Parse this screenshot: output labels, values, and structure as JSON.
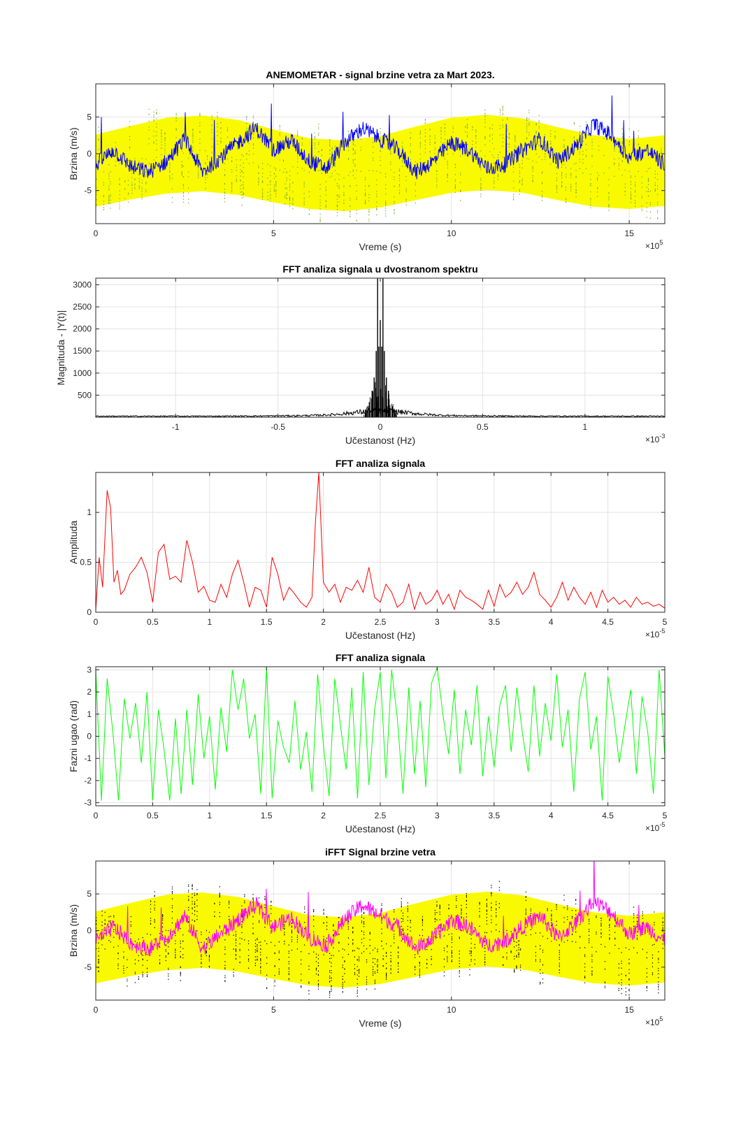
{
  "chart_data": [
    {
      "type": "line",
      "title": "ANEMOMETAR - signal brzine vetra za Mart 2023.",
      "xlabel": "Vreme (s)",
      "ylabel": "Brzina (m/s)",
      "x_exponent": "×10",
      "x_exponent_power": "5",
      "xlim": [
        0,
        16
      ],
      "ylim": [
        -9.5,
        9.5
      ],
      "xticks": [
        0,
        5,
        10,
        15
      ],
      "xtick_labels": [
        "0",
        "5",
        "10",
        "15"
      ],
      "yticks": [
        -5,
        0,
        5
      ],
      "ytick_labels": [
        "-5",
        "0",
        "5"
      ],
      "grid": true,
      "colors": {
        "band": "#ffff00",
        "band_edge": "#e6e600",
        "noise": "#77ac30",
        "signal": "#0000ff"
      },
      "series": [
        {
          "style": "band",
          "x": [
            0,
            1,
            2,
            3,
            4,
            5,
            6,
            7,
            8,
            9,
            10,
            11,
            12,
            13,
            14,
            15,
            16
          ],
          "upper": [
            2.6,
            3.8,
            4.9,
            5.2,
            4.6,
            3.3,
            2.1,
            1.8,
            2.4,
            3.7,
            4.9,
            5.3,
            4.8,
            3.6,
            2.5,
            2.0,
            2.5
          ],
          "lower": [
            -7.2,
            -6.2,
            -5.4,
            -5.1,
            -5.6,
            -6.6,
            -7.5,
            -7.8,
            -7.3,
            -6.3,
            -5.3,
            -4.9,
            -5.3,
            -6.3,
            -7.2,
            -7.5,
            -7.1
          ]
        },
        {
          "style": "noise",
          "amplitude": 6.5
        },
        {
          "style": "line",
          "x": [
            0,
            0.5,
            1,
            1.5,
            2,
            2.5,
            3,
            3.5,
            4,
            4.5,
            5,
            5.5,
            6,
            6.5,
            7,
            7.5,
            8,
            8.5,
            9,
            9.5,
            10,
            10.5,
            11,
            11.5,
            12,
            12.5,
            13,
            13.5,
            14,
            14.5,
            15,
            15.5,
            16
          ],
          "values": [
            -1.5,
            0.5,
            -1.8,
            -2.5,
            -1.0,
            2.0,
            -2.5,
            -0.5,
            1.5,
            3.5,
            0.5,
            1.8,
            -1.0,
            -2.0,
            1.5,
            3.5,
            2.0,
            0.5,
            -2.5,
            -1.0,
            1.5,
            0.5,
            -2.0,
            -1.5,
            0.5,
            2.0,
            -1.0,
            1.0,
            4.0,
            2.5,
            -0.5,
            0.5,
            -1.5
          ]
        }
      ]
    },
    {
      "type": "line",
      "title": "FFT analiza signala u dvostranom spektru",
      "xlabel": "Učestanost (Hz)",
      "ylabel": "Magnituda - |Y(t)|",
      "x_exponent": "×10",
      "x_exponent_power": "-3",
      "xlim": [
        -1.39,
        1.39
      ],
      "ylim": [
        0,
        3150
      ],
      "xticks": [
        -1,
        -0.5,
        0,
        0.5,
        1
      ],
      "xtick_labels": [
        "-1",
        "-0.5",
        "0",
        "0.5",
        "1"
      ],
      "yticks": [
        500,
        1000,
        1500,
        2000,
        2500,
        3000
      ],
      "ytick_labels": [
        "500",
        "1000",
        "1500",
        "2000",
        "2500",
        "3000"
      ],
      "grid": true,
      "colors": {
        "line": "#000000"
      },
      "series": [
        {
          "style": "peaks",
          "x": [
            -0.06,
            -0.04,
            -0.03,
            -0.02,
            -0.013,
            -0.007,
            0,
            0.007,
            0.013,
            0.02,
            0.03,
            0.04,
            0.06
          ],
          "values": [
            250,
            600,
            900,
            1500,
            3150,
            1600,
            2200,
            1600,
            3150,
            1500,
            900,
            600,
            250
          ]
        }
      ]
    },
    {
      "type": "line",
      "title": "FFT analiza signala",
      "xlabel": "Učestanost (Hz)",
      "ylabel": "Amplituda",
      "x_exponent": "×10",
      "x_exponent_power": "-5",
      "xlim": [
        0,
        5
      ],
      "ylim": [
        0,
        1.4
      ],
      "xticks": [
        0,
        0.5,
        1,
        1.5,
        2,
        2.5,
        3,
        3.5,
        4,
        4.5,
        5
      ],
      "xtick_labels": [
        "0",
        "0.5",
        "1",
        "1.5",
        "2",
        "2.5",
        "3",
        "3.5",
        "4",
        "4.5",
        "5"
      ],
      "yticks": [
        0,
        0.5,
        1
      ],
      "ytick_labels": [
        "0",
        "0.5",
        "1"
      ],
      "grid": true,
      "colors": {
        "line": "#ff0000"
      },
      "series": [
        {
          "style": "line",
          "x": [
            0,
            0.03,
            0.06,
            0.1,
            0.13,
            0.16,
            0.19,
            0.22,
            0.25,
            0.3,
            0.35,
            0.4,
            0.45,
            0.5,
            0.55,
            0.6,
            0.65,
            0.7,
            0.75,
            0.8,
            0.85,
            0.9,
            0.95,
            1.0,
            1.05,
            1.1,
            1.15,
            1.2,
            1.25,
            1.3,
            1.35,
            1.4,
            1.45,
            1.5,
            1.55,
            1.6,
            1.65,
            1.7,
            1.75,
            1.8,
            1.85,
            1.9,
            1.93,
            1.96,
            2.0,
            2.05,
            2.1,
            2.15,
            2.2,
            2.25,
            2.3,
            2.35,
            2.4,
            2.45,
            2.5,
            2.55,
            2.6,
            2.65,
            2.7,
            2.75,
            2.8,
            2.85,
            2.9,
            2.95,
            3.0,
            3.05,
            3.1,
            3.15,
            3.2,
            3.25,
            3.3,
            3.35,
            3.4,
            3.45,
            3.5,
            3.55,
            3.6,
            3.65,
            3.7,
            3.75,
            3.8,
            3.85,
            3.9,
            3.95,
            4.0,
            4.05,
            4.1,
            4.15,
            4.2,
            4.25,
            4.3,
            4.35,
            4.4,
            4.45,
            4.5,
            4.55,
            4.6,
            4.65,
            4.7,
            4.75,
            4.8,
            4.85,
            4.9,
            4.95,
            5.0
          ],
          "values": [
            0.02,
            0.55,
            0.25,
            1.22,
            1.05,
            0.3,
            0.42,
            0.18,
            0.22,
            0.38,
            0.45,
            0.55,
            0.4,
            0.1,
            0.6,
            0.68,
            0.33,
            0.36,
            0.3,
            0.72,
            0.5,
            0.2,
            0.26,
            0.12,
            0.1,
            0.28,
            0.15,
            0.38,
            0.52,
            0.3,
            0.05,
            0.25,
            0.22,
            0.05,
            0.55,
            0.38,
            0.12,
            0.25,
            0.18,
            0.1,
            0.05,
            0.15,
            0.9,
            1.4,
            0.3,
            0.2,
            0.28,
            0.1,
            0.25,
            0.22,
            0.32,
            0.2,
            0.45,
            0.15,
            0.1,
            0.28,
            0.2,
            0.05,
            0.1,
            0.28,
            0.03,
            0.2,
            0.08,
            0.12,
            0.22,
            0.08,
            0.18,
            0.03,
            0.22,
            0.15,
            0.12,
            0.08,
            0.03,
            0.22,
            0.06,
            0.28,
            0.15,
            0.2,
            0.3,
            0.18,
            0.25,
            0.4,
            0.18,
            0.12,
            0.05,
            0.15,
            0.3,
            0.12,
            0.25,
            0.15,
            0.08,
            0.2,
            0.05,
            0.22,
            0.1,
            0.15,
            0.08,
            0.12,
            0.05,
            0.15,
            0.08,
            0.1,
            0.06,
            0.08,
            0.04
          ]
        }
      ]
    },
    {
      "type": "line",
      "title": "FFT analiza signala",
      "xlabel": "Učestanost (Hz)",
      "ylabel": "Fazni ugao (rad)",
      "x_exponent": "×10",
      "x_exponent_power": "-5",
      "xlim": [
        0,
        5
      ],
      "ylim": [
        -3.14,
        3.14
      ],
      "xticks": [
        0,
        0.5,
        1,
        1.5,
        2,
        2.5,
        3,
        3.5,
        4,
        4.5,
        5
      ],
      "xtick_labels": [
        "0",
        "0.5",
        "1",
        "1.5",
        "2",
        "2.5",
        "3",
        "3.5",
        "4",
        "4.5",
        "5"
      ],
      "yticks": [
        -3,
        -2,
        -1,
        0,
        1,
        2,
        3
      ],
      "ytick_labels": [
        "-3",
        "-2",
        "-1",
        "0",
        "1",
        "2",
        "3"
      ],
      "grid": true,
      "colors": {
        "line": "#00ff00"
      },
      "series": [
        {
          "style": "line",
          "x": [
            0,
            0.05,
            0.1,
            0.15,
            0.2,
            0.25,
            0.3,
            0.35,
            0.4,
            0.45,
            0.5,
            0.55,
            0.6,
            0.65,
            0.7,
            0.75,
            0.8,
            0.85,
            0.9,
            0.95,
            1.0,
            1.05,
            1.1,
            1.15,
            1.2,
            1.25,
            1.3,
            1.35,
            1.4,
            1.45,
            1.5,
            1.55,
            1.6,
            1.65,
            1.7,
            1.75,
            1.8,
            1.85,
            1.9,
            1.95,
            2.0,
            2.05,
            2.1,
            2.15,
            2.2,
            2.25,
            2.3,
            2.35,
            2.4,
            2.45,
            2.5,
            2.55,
            2.6,
            2.65,
            2.7,
            2.75,
            2.8,
            2.85,
            2.9,
            2.95,
            3.0,
            3.05,
            3.1,
            3.15,
            3.2,
            3.25,
            3.3,
            3.35,
            3.4,
            3.45,
            3.5,
            3.55,
            3.6,
            3.65,
            3.7,
            3.75,
            3.8,
            3.85,
            3.9,
            3.95,
            4.0,
            4.05,
            4.1,
            4.15,
            4.2,
            4.25,
            4.3,
            4.35,
            4.4,
            4.45,
            4.5,
            4.55,
            4.6,
            4.65,
            4.7,
            4.75,
            4.8,
            4.85,
            4.9,
            4.95,
            5.0
          ],
          "values": [
            3.0,
            -2.9,
            2.6,
            0.2,
            -2.9,
            1.7,
            -0.1,
            1.5,
            -1.2,
            2.0,
            -2.9,
            1.2,
            -0.6,
            -2.9,
            0.8,
            -2.6,
            1.2,
            -2.2,
            1.9,
            -1.0,
            0.9,
            -2.4,
            1.3,
            -0.7,
            3.0,
            1.2,
            2.6,
            -0.1,
            1.0,
            -2.6,
            3.1,
            -2.8,
            0.7,
            -0.5,
            -1.2,
            1.6,
            -1.5,
            0.2,
            -2.5,
            2.8,
            -0.4,
            -2.7,
            2.6,
            0.5,
            -1.5,
            2.2,
            -2.8,
            2.9,
            -2.2,
            1.2,
            2.9,
            -1.9,
            3.0,
            0.8,
            -2.6,
            2.2,
            -1.7,
            1.6,
            -2.3,
            2.4,
            3.1,
            1.0,
            -0.8,
            2.1,
            -1.7,
            1.2,
            -0.4,
            2.3,
            -1.8,
            0.9,
            -1.4,
            1.4,
            2.3,
            -0.7,
            2.2,
            0.1,
            -1.6,
            2.3,
            -0.9,
            1.5,
            -0.2,
            2.8,
            -0.5,
            1.2,
            -2.5,
            1.7,
            2.9,
            -0.6,
            0.9,
            -2.9,
            2.7,
            1.0,
            -1.2,
            0.5,
            2.1,
            -1.7,
            1.8,
            0.2,
            -2.6,
            3.0,
            -0.9
          ]
        }
      ]
    },
    {
      "type": "line",
      "title": "iFFT Signal brzine vetra",
      "xlabel": "Vreme (s)",
      "ylabel": "Brzina (m/s)",
      "x_exponent": "×10",
      "x_exponent_power": "5",
      "xlim": [
        0,
        16
      ],
      "ylim": [
        -9.5,
        9.5
      ],
      "xticks": [
        0,
        5,
        10,
        15
      ],
      "xtick_labels": [
        "0",
        "5",
        "10",
        "15"
      ],
      "yticks": [
        -5,
        0,
        5
      ],
      "ytick_labels": [
        "-5",
        "0",
        "5"
      ],
      "grid": true,
      "colors": {
        "band": "#ffff00",
        "band_edge": "#e6e600",
        "noise": "#000000",
        "signal": "#ff00ff"
      },
      "series": [
        {
          "style": "band",
          "x": [
            0,
            1,
            2,
            3,
            4,
            5,
            6,
            7,
            8,
            9,
            10,
            11,
            12,
            13,
            14,
            15,
            16
          ],
          "upper": [
            2.6,
            3.8,
            4.9,
            5.2,
            4.6,
            3.3,
            2.1,
            1.8,
            2.4,
            3.7,
            4.9,
            5.3,
            4.8,
            3.6,
            2.5,
            2.0,
            2.5
          ],
          "lower": [
            -7.2,
            -6.2,
            -5.4,
            -5.1,
            -5.6,
            -6.6,
            -7.5,
            -7.8,
            -7.3,
            -6.3,
            -5.3,
            -4.9,
            -5.3,
            -6.3,
            -7.2,
            -7.5,
            -7.1
          ]
        },
        {
          "style": "noise",
          "amplitude": 6.5
        },
        {
          "style": "line",
          "x": [
            0,
            0.5,
            1,
            1.5,
            2,
            2.5,
            3,
            3.5,
            4,
            4.5,
            5,
            5.5,
            6,
            6.5,
            7,
            7.5,
            8,
            8.5,
            9,
            9.5,
            10,
            10.5,
            11,
            11.5,
            12,
            12.5,
            13,
            13.5,
            14,
            14.5,
            15,
            15.5,
            16
          ],
          "values": [
            -1.5,
            0.5,
            -1.8,
            -2.5,
            -1.0,
            2.0,
            -2.5,
            -0.5,
            1.5,
            3.5,
            0.5,
            1.8,
            -1.0,
            -2.0,
            1.5,
            3.5,
            2.0,
            0.5,
            -2.5,
            -1.0,
            1.5,
            0.5,
            -2.0,
            -1.5,
            0.5,
            2.0,
            -1.0,
            1.0,
            4.0,
            2.5,
            -0.5,
            0.5,
            -1.5
          ]
        }
      ]
    }
  ]
}
